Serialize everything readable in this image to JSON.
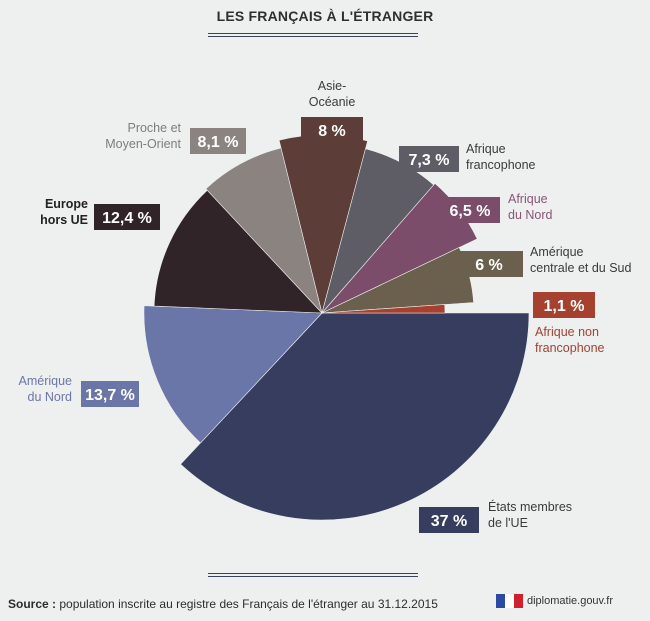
{
  "title": "LES FRANÇAIS À L'ÉTRANGER",
  "footer": {
    "source_label": "Source :",
    "source_text": " population inscrite au registre des Français de l'étranger au 31.12.2015",
    "brand": "diplomatie.gouv.fr"
  },
  "colors": {
    "background": "#eef0ef",
    "flag_blue": "#2b4aa3",
    "flag_white": "#ffffff",
    "flag_red": "#d0202e"
  },
  "chart_data": {
    "type": "pie",
    "unit": "%",
    "slices": [
      {
        "name": "États membres de l'UE",
        "label_lines": [
          "États membres",
          "de l'UE"
        ],
        "value": 37,
        "display": "37 %",
        "color": "#363d5f",
        "label_color": "#3a3a3a"
      },
      {
        "name": "Amérique du Nord",
        "label_lines": [
          "Amérique",
          "du Nord"
        ],
        "value": 13.7,
        "display": "13,7 %",
        "color": "#6b76a8",
        "label_color": "#6b76a8"
      },
      {
        "name": "Europe hors UE",
        "label_lines": [
          "Europe",
          "hors UE"
        ],
        "value": 12.4,
        "display": "12,4 %",
        "color": "#302428",
        "label_color": "#222222"
      },
      {
        "name": "Proche et Moyen-Orient",
        "label_lines": [
          "Proche et",
          "Moyen-Orient"
        ],
        "value": 8.1,
        "display": "8,1 %",
        "color": "#8a8380",
        "label_color": "#7d7d7d"
      },
      {
        "name": "Asie-Océanie",
        "label_lines": [
          "Asie-",
          "Océanie"
        ],
        "value": 8,
        "display": "8 %",
        "color": "#5c3d38",
        "label_color": "#3a3a3a"
      },
      {
        "name": "Afrique francophone",
        "label_lines": [
          "Afrique",
          "francophone"
        ],
        "value": 7.3,
        "display": "7,3 %",
        "color": "#5e5d66",
        "label_color": "#3a3a3a"
      },
      {
        "name": "Afrique du Nord",
        "label_lines": [
          "Afrique",
          "du Nord"
        ],
        "value": 6.5,
        "display": "6,5 %",
        "color": "#7c4c6b",
        "label_color": "#8a5478"
      },
      {
        "name": "Amérique centrale et du Sud",
        "label_lines": [
          "Amérique",
          "centrale et du Sud"
        ],
        "value": 6,
        "display": "6 %",
        "color": "#6b5f4e",
        "label_color": "#3a3a3a"
      },
      {
        "name": "Afrique non francophone",
        "label_lines": [
          "Afrique non",
          "francophone"
        ],
        "value": 1.1,
        "display": "1,1 %",
        "color": "#a6412f",
        "label_color": "#a6412f"
      }
    ]
  }
}
